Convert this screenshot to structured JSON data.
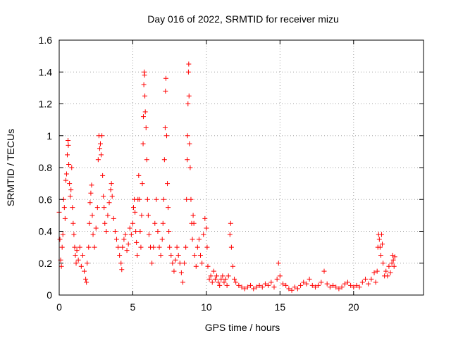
{
  "chart_data": {
    "type": "scatter",
    "title": "Day 016 of 2022, SRMTID for receiver mizu",
    "xlabel": "GPS time / hours",
    "ylabel": "SRMTID / TECUs",
    "xlim": [
      0,
      24.75
    ],
    "ylim": [
      0,
      1.6
    ],
    "xticks": [
      0,
      5,
      10,
      15,
      20
    ],
    "xtick_labels": [
      "0",
      "5",
      "10",
      "15",
      "20"
    ],
    "yticks": [
      0,
      0.2,
      0.4,
      0.6,
      0.8,
      1,
      1.2,
      1.4,
      1.6
    ],
    "ytick_labels": [
      "0",
      "0.2",
      "0.4",
      "0.6",
      "0.8",
      "1",
      "1.2",
      "1.4",
      "1.6"
    ],
    "grid": true,
    "marker": "+",
    "color": "#ff0000",
    "series": [
      {
        "name": "SRMTID",
        "points": [
          [
            0.0,
            0.52
          ],
          [
            0.05,
            0.35
          ],
          [
            0.1,
            0.22
          ],
          [
            0.15,
            0.18
          ],
          [
            0.2,
            0.3
          ],
          [
            0.25,
            0.38
          ],
          [
            0.3,
            0.6
          ],
          [
            0.35,
            0.55
          ],
          [
            0.4,
            0.48
          ],
          [
            0.45,
            0.72
          ],
          [
            0.5,
            0.76
          ],
          [
            0.55,
            0.88
          ],
          [
            0.6,
            0.97
          ],
          [
            0.62,
            0.94
          ],
          [
            0.65,
            0.82
          ],
          [
            0.7,
            0.7
          ],
          [
            0.75,
            0.62
          ],
          [
            0.8,
            0.66
          ],
          [
            0.85,
            0.8
          ],
          [
            0.9,
            0.55
          ],
          [
            0.95,
            0.45
          ],
          [
            1.0,
            0.38
          ],
          [
            1.05,
            0.3
          ],
          [
            1.1,
            0.25
          ],
          [
            1.15,
            0.2
          ],
          [
            1.2,
            0.28
          ],
          [
            1.3,
            0.22
          ],
          [
            1.4,
            0.3
          ],
          [
            1.5,
            0.18
          ],
          [
            1.6,
            0.25
          ],
          [
            1.7,
            0.15
          ],
          [
            1.8,
            0.1
          ],
          [
            1.85,
            0.08
          ],
          [
            1.9,
            0.2
          ],
          [
            2.0,
            0.3
          ],
          [
            2.05,
            0.45
          ],
          [
            2.1,
            0.58
          ],
          [
            2.15,
            0.64
          ],
          [
            2.2,
            0.69
          ],
          [
            2.25,
            0.5
          ],
          [
            2.3,
            0.38
          ],
          [
            2.4,
            0.3
          ],
          [
            2.5,
            0.42
          ],
          [
            2.6,
            0.55
          ],
          [
            2.65,
            0.85
          ],
          [
            2.7,
            1.0
          ],
          [
            2.75,
            0.92
          ],
          [
            2.8,
            0.95
          ],
          [
            2.85,
            0.88
          ],
          [
            2.9,
            1.0
          ],
          [
            2.95,
            0.75
          ],
          [
            3.0,
            0.62
          ],
          [
            3.05,
            0.55
          ],
          [
            3.1,
            0.45
          ],
          [
            3.2,
            0.4
          ],
          [
            3.3,
            0.5
          ],
          [
            3.4,
            0.58
          ],
          [
            3.5,
            0.66
          ],
          [
            3.55,
            0.7
          ],
          [
            3.6,
            0.62
          ],
          [
            3.7,
            0.48
          ],
          [
            3.8,
            0.4
          ],
          [
            3.9,
            0.35
          ],
          [
            4.0,
            0.3
          ],
          [
            4.1,
            0.25
          ],
          [
            4.2,
            0.2
          ],
          [
            4.25,
            0.16
          ],
          [
            4.3,
            0.3
          ],
          [
            4.4,
            0.35
          ],
          [
            4.5,
            0.38
          ],
          [
            4.6,
            0.28
          ],
          [
            4.7,
            0.32
          ],
          [
            4.8,
            0.42
          ],
          [
            4.9,
            0.38
          ],
          [
            5.0,
            0.45
          ],
          [
            5.05,
            0.55
          ],
          [
            5.1,
            0.6
          ],
          [
            5.15,
            0.52
          ],
          [
            5.2,
            0.4
          ],
          [
            5.25,
            0.33
          ],
          [
            5.3,
            0.25
          ],
          [
            5.35,
            0.6
          ],
          [
            5.4,
            0.75
          ],
          [
            5.45,
            0.6
          ],
          [
            5.5,
            0.4
          ],
          [
            5.55,
            0.3
          ],
          [
            5.6,
            0.5
          ],
          [
            5.65,
            0.7
          ],
          [
            5.7,
            0.95
          ],
          [
            5.72,
            1.12
          ],
          [
            5.75,
            1.32
          ],
          [
            5.78,
            1.4
          ],
          [
            5.8,
            1.38
          ],
          [
            5.82,
            1.25
          ],
          [
            5.85,
            1.15
          ],
          [
            5.9,
            1.05
          ],
          [
            5.95,
            0.85
          ],
          [
            6.0,
            0.6
          ],
          [
            6.05,
            0.5
          ],
          [
            6.1,
            0.38
          ],
          [
            6.2,
            0.3
          ],
          [
            6.3,
            0.2
          ],
          [
            6.4,
            0.3
          ],
          [
            6.5,
            0.45
          ],
          [
            6.6,
            0.6
          ],
          [
            6.7,
            0.4
          ],
          [
            6.8,
            0.3
          ],
          [
            6.9,
            0.25
          ],
          [
            7.0,
            0.35
          ],
          [
            7.05,
            0.45
          ],
          [
            7.1,
            0.6
          ],
          [
            7.15,
            0.85
          ],
          [
            7.2,
            1.05
          ],
          [
            7.22,
            1.28
          ],
          [
            7.25,
            1.36
          ],
          [
            7.3,
            1.0
          ],
          [
            7.35,
            0.7
          ],
          [
            7.4,
            0.55
          ],
          [
            7.45,
            0.4
          ],
          [
            7.5,
            0.3
          ],
          [
            7.6,
            0.25
          ],
          [
            7.7,
            0.2
          ],
          [
            7.8,
            0.15
          ],
          [
            7.9,
            0.22
          ],
          [
            8.0,
            0.3
          ],
          [
            8.1,
            0.25
          ],
          [
            8.2,
            0.2
          ],
          [
            8.3,
            0.14
          ],
          [
            8.4,
            0.08
          ],
          [
            8.5,
            0.2
          ],
          [
            8.6,
            0.3
          ],
          [
            8.65,
            0.6
          ],
          [
            8.7,
            0.85
          ],
          [
            8.72,
            1.0
          ],
          [
            8.75,
            1.2
          ],
          [
            8.78,
            1.4
          ],
          [
            8.8,
            1.45
          ],
          [
            8.82,
            1.25
          ],
          [
            8.85,
            0.95
          ],
          [
            8.9,
            0.8
          ],
          [
            8.95,
            0.6
          ],
          [
            9.0,
            0.45
          ],
          [
            9.05,
            0.35
          ],
          [
            9.1,
            0.5
          ],
          [
            9.15,
            0.45
          ],
          [
            9.2,
            0.25
          ],
          [
            9.3,
            0.18
          ],
          [
            9.4,
            0.3
          ],
          [
            9.5,
            0.35
          ],
          [
            9.6,
            0.25
          ],
          [
            9.7,
            0.2
          ],
          [
            9.8,
            0.38
          ],
          [
            9.9,
            0.48
          ],
          [
            10.0,
            0.42
          ],
          [
            10.05,
            0.3
          ],
          [
            10.1,
            0.18
          ],
          [
            10.2,
            0.1
          ],
          [
            10.3,
            0.12
          ],
          [
            10.4,
            0.08
          ],
          [
            10.5,
            0.15
          ],
          [
            10.6,
            0.1
          ],
          [
            10.7,
            0.12
          ],
          [
            10.8,
            0.08
          ],
          [
            10.9,
            0.06
          ],
          [
            11.0,
            0.1
          ],
          [
            11.1,
            0.12
          ],
          [
            11.2,
            0.08
          ],
          [
            11.3,
            0.1
          ],
          [
            11.4,
            0.06
          ],
          [
            11.5,
            0.12
          ],
          [
            11.6,
            0.38
          ],
          [
            11.65,
            0.45
          ],
          [
            11.7,
            0.3
          ],
          [
            11.8,
            0.18
          ],
          [
            11.9,
            0.1
          ],
          [
            12.0,
            0.08
          ],
          [
            12.2,
            0.06
          ],
          [
            12.4,
            0.05
          ],
          [
            12.6,
            0.04
          ],
          [
            12.8,
            0.05
          ],
          [
            13.0,
            0.06
          ],
          [
            13.2,
            0.04
          ],
          [
            13.4,
            0.05
          ],
          [
            13.6,
            0.06
          ],
          [
            13.8,
            0.05
          ],
          [
            14.0,
            0.07
          ],
          [
            14.2,
            0.06
          ],
          [
            14.4,
            0.08
          ],
          [
            14.6,
            0.05
          ],
          [
            14.8,
            0.1
          ],
          [
            14.9,
            0.2
          ],
          [
            15.0,
            0.12
          ],
          [
            15.2,
            0.07
          ],
          [
            15.4,
            0.06
          ],
          [
            15.6,
            0.04
          ],
          [
            15.8,
            0.03
          ],
          [
            16.0,
            0.05
          ],
          [
            16.2,
            0.04
          ],
          [
            16.4,
            0.06
          ],
          [
            16.6,
            0.08
          ],
          [
            16.8,
            0.07
          ],
          [
            17.0,
            0.1
          ],
          [
            17.2,
            0.06
          ],
          [
            17.4,
            0.05
          ],
          [
            17.6,
            0.06
          ],
          [
            17.8,
            0.08
          ],
          [
            18.0,
            0.15
          ],
          [
            18.2,
            0.07
          ],
          [
            18.4,
            0.05
          ],
          [
            18.6,
            0.06
          ],
          [
            18.8,
            0.05
          ],
          [
            19.0,
            0.04
          ],
          [
            19.2,
            0.05
          ],
          [
            19.4,
            0.07
          ],
          [
            19.6,
            0.08
          ],
          [
            19.8,
            0.06
          ],
          [
            20.0,
            0.05
          ],
          [
            20.2,
            0.06
          ],
          [
            20.4,
            0.05
          ],
          [
            20.6,
            0.08
          ],
          [
            20.8,
            0.1
          ],
          [
            21.0,
            0.07
          ],
          [
            21.2,
            0.1
          ],
          [
            21.4,
            0.14
          ],
          [
            21.5,
            0.08
          ],
          [
            21.6,
            0.15
          ],
          [
            21.65,
            0.3
          ],
          [
            21.7,
            0.38
          ],
          [
            21.75,
            0.35
          ],
          [
            21.8,
            0.3
          ],
          [
            21.85,
            0.25
          ],
          [
            21.9,
            0.38
          ],
          [
            21.95,
            0.32
          ],
          [
            22.0,
            0.2
          ],
          [
            22.1,
            0.12
          ],
          [
            22.2,
            0.15
          ],
          [
            22.3,
            0.12
          ],
          [
            22.4,
            0.18
          ],
          [
            22.5,
            0.14
          ],
          [
            22.6,
            0.2
          ],
          [
            22.65,
            0.25
          ],
          [
            22.7,
            0.22
          ],
          [
            22.75,
            0.18
          ],
          [
            22.8,
            0.24
          ]
        ]
      }
    ]
  }
}
